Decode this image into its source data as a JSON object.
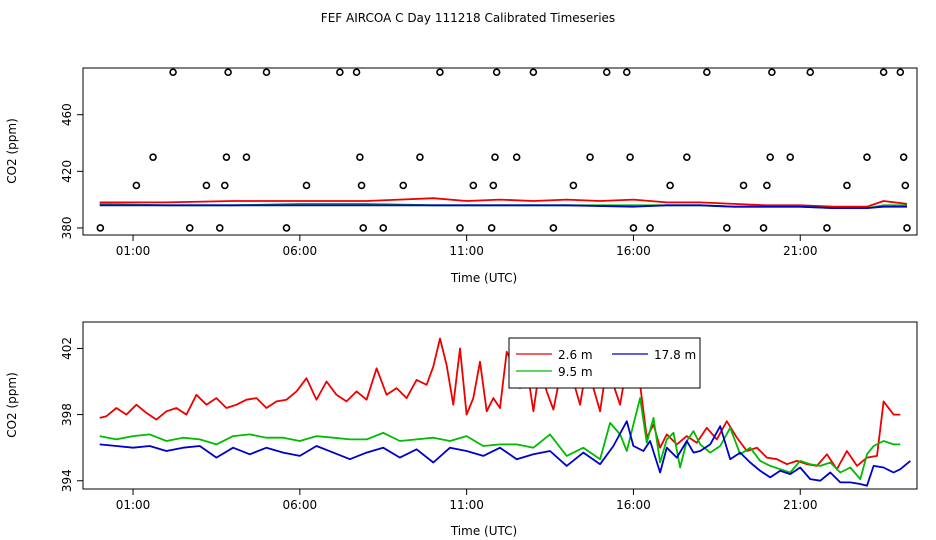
{
  "title": "FEF AIRCOA C  Day 111218  Calibrated Timeseries",
  "chart_data": [
    {
      "type": "line",
      "xlabel": "Time (UTC)",
      "ylabel": "CO2 (ppm)",
      "xlim": [
        -0.5,
        24.5
      ],
      "ylim": [
        375,
        493
      ],
      "x_ticks": [
        1,
        6,
        11,
        16,
        21
      ],
      "x_tick_labels": [
        "01:00",
        "06:00",
        "11:00",
        "16:00",
        "21:00"
      ],
      "y_ticks": [
        380,
        420,
        460
      ],
      "y_tick_labels": [
        "380",
        "420",
        "460"
      ],
      "grid": false,
      "legend": null,
      "markers": [
        {
          "x": 0.02,
          "y": 380
        },
        {
          "x": 1.1,
          "y": 410
        },
        {
          "x": 1.6,
          "y": 430
        },
        {
          "x": 2.2,
          "y": 490
        },
        {
          "x": 2.7,
          "y": 380
        },
        {
          "x": 3.2,
          "y": 410
        },
        {
          "x": 3.6,
          "y": 380
        },
        {
          "x": 3.75,
          "y": 410
        },
        {
          "x": 3.8,
          "y": 430
        },
        {
          "x": 3.85,
          "y": 490
        },
        {
          "x": 4.4,
          "y": 430
        },
        {
          "x": 5.0,
          "y": 490
        },
        {
          "x": 5.6,
          "y": 380
        },
        {
          "x": 6.2,
          "y": 410
        },
        {
          "x": 7.2,
          "y": 490
        },
        {
          "x": 7.7,
          "y": 490
        },
        {
          "x": 7.8,
          "y": 430
        },
        {
          "x": 7.85,
          "y": 410
        },
        {
          "x": 7.9,
          "y": 380
        },
        {
          "x": 8.5,
          "y": 380
        },
        {
          "x": 9.1,
          "y": 410
        },
        {
          "x": 9.6,
          "y": 430
        },
        {
          "x": 10.2,
          "y": 490
        },
        {
          "x": 10.8,
          "y": 380
        },
        {
          "x": 11.2,
          "y": 410
        },
        {
          "x": 11.8,
          "y": 410
        },
        {
          "x": 11.85,
          "y": 430
        },
        {
          "x": 11.9,
          "y": 490
        },
        {
          "x": 11.75,
          "y": 380
        },
        {
          "x": 12.5,
          "y": 430
        },
        {
          "x": 13.0,
          "y": 490
        },
        {
          "x": 13.6,
          "y": 380
        },
        {
          "x": 14.2,
          "y": 410
        },
        {
          "x": 14.7,
          "y": 430
        },
        {
          "x": 15.2,
          "y": 490
        },
        {
          "x": 15.8,
          "y": 490
        },
        {
          "x": 15.9,
          "y": 430
        },
        {
          "x": 16.0,
          "y": 380
        },
        {
          "x": 16.5,
          "y": 380
        },
        {
          "x": 17.1,
          "y": 410
        },
        {
          "x": 17.6,
          "y": 430
        },
        {
          "x": 18.2,
          "y": 490
        },
        {
          "x": 18.8,
          "y": 380
        },
        {
          "x": 19.3,
          "y": 410
        },
        {
          "x": 19.9,
          "y": 380
        },
        {
          "x": 20.0,
          "y": 410
        },
        {
          "x": 20.1,
          "y": 430
        },
        {
          "x": 20.15,
          "y": 490
        },
        {
          "x": 20.7,
          "y": 430
        },
        {
          "x": 21.3,
          "y": 490
        },
        {
          "x": 21.8,
          "y": 380
        },
        {
          "x": 22.4,
          "y": 410
        },
        {
          "x": 23.0,
          "y": 430
        },
        {
          "x": 23.5,
          "y": 490
        },
        {
          "x": 24.0,
          "y": 490
        },
        {
          "x": 24.1,
          "y": 430
        },
        {
          "x": 24.15,
          "y": 410
        },
        {
          "x": 24.2,
          "y": 380
        }
      ],
      "series": [
        {
          "color": "#ee0000",
          "x": [
            0,
            2,
            4,
            6,
            8,
            9,
            10,
            11,
            12,
            13,
            14,
            15,
            16,
            17,
            18,
            19,
            20,
            21,
            22,
            23,
            23.5,
            24.2
          ],
          "values": [
            398,
            398,
            399,
            399,
            399,
            400,
            401,
            399,
            400,
            399,
            400,
            399,
            400,
            398,
            398,
            397,
            396,
            396,
            395,
            395,
            399,
            397
          ]
        },
        {
          "color": "#00bb00",
          "x": [
            0,
            2,
            4,
            6,
            8,
            10,
            12,
            14,
            16,
            17,
            18,
            19,
            20,
            21,
            22,
            23,
            23.5,
            24.2
          ],
          "values": [
            397,
            396,
            396,
            397,
            397,
            396,
            396,
            396,
            396,
            396,
            396,
            395,
            395,
            395,
            394,
            394,
            396,
            396
          ]
        },
        {
          "color": "#0000cc",
          "x": [
            0,
            2,
            4,
            6,
            8,
            10,
            12,
            14,
            16,
            17,
            18,
            19,
            20,
            21,
            22,
            23,
            23.5,
            24.2
          ],
          "values": [
            396,
            396,
            396,
            396,
            396,
            396,
            396,
            396,
            395,
            396,
            396,
            395,
            395,
            395,
            394,
            394,
            395,
            395
          ]
        }
      ]
    },
    {
      "type": "line",
      "xlabel": "Time (UTC)",
      "ylabel": "CO2 (ppm)",
      "xlim": [
        -0.5,
        24.5
      ],
      "ylim": [
        393.5,
        403.6
      ],
      "x_ticks": [
        1,
        6,
        11,
        16,
        21
      ],
      "x_tick_labels": [
        "01:00",
        "06:00",
        "11:00",
        "16:00",
        "21:00"
      ],
      "y_ticks": [
        394,
        398,
        402
      ],
      "y_tick_labels": [
        "394",
        "398",
        "402"
      ],
      "grid": false,
      "legend": "top-center",
      "series": [
        {
          "name": "2.6 m",
          "color": "#ee0000",
          "x": [
            0,
            0.2,
            0.5,
            0.8,
            1.1,
            1.4,
            1.7,
            2.0,
            2.3,
            2.6,
            2.9,
            3.2,
            3.5,
            3.8,
            4.1,
            4.4,
            4.7,
            5.0,
            5.3,
            5.6,
            5.9,
            6.2,
            6.5,
            6.8,
            7.1,
            7.4,
            7.7,
            8.0,
            8.3,
            8.6,
            8.9,
            9.2,
            9.5,
            9.8,
            10.0,
            10.2,
            10.4,
            10.6,
            10.8,
            11.0,
            11.2,
            11.4,
            11.6,
            11.8,
            12.0,
            12.2,
            12.4,
            12.6,
            12.8,
            13.0,
            13.2,
            13.4,
            13.6,
            13.8,
            14.0,
            14.2,
            14.4,
            14.6,
            14.8,
            15.0,
            15.2,
            15.4,
            15.6,
            15.8,
            16.0,
            16.2,
            16.4,
            16.6,
            16.8,
            17.0,
            17.3,
            17.6,
            17.9,
            18.2,
            18.5,
            18.8,
            19.1,
            19.4,
            19.7,
            20.0,
            20.3,
            20.6,
            20.9,
            21.2,
            21.5,
            21.8,
            22.1,
            22.4,
            22.7,
            23.0,
            23.3,
            23.5,
            23.8,
            24.0
          ],
          "values": [
            397.8,
            397.9,
            398.4,
            398.0,
            398.6,
            398.1,
            397.7,
            398.2,
            398.4,
            398.0,
            399.2,
            398.6,
            399.0,
            398.4,
            398.6,
            398.9,
            399.0,
            398.4,
            398.8,
            398.9,
            399.4,
            400.2,
            398.9,
            400.0,
            399.2,
            398.8,
            399.4,
            398.9,
            400.8,
            399.2,
            399.6,
            399.0,
            400.1,
            399.8,
            400.9,
            402.6,
            401.0,
            398.6,
            402.0,
            398.0,
            399.0,
            401.2,
            398.2,
            399.0,
            398.4,
            401.8,
            401.0,
            399.6,
            400.9,
            398.2,
            401.0,
            399.4,
            398.3,
            400.3,
            402.5,
            400.0,
            398.6,
            401.0,
            399.6,
            398.2,
            401.0,
            399.8,
            398.6,
            401.0,
            402.2,
            399.8,
            396.6,
            397.4,
            396.0,
            396.8,
            396.2,
            396.7,
            396.3,
            397.2,
            396.5,
            397.6,
            396.6,
            395.8,
            396.0,
            395.4,
            395.3,
            395.0,
            395.2,
            395.0,
            394.9,
            395.6,
            394.7,
            395.8,
            394.9,
            395.4,
            395.5,
            398.8,
            398.0,
            398.0
          ]
        },
        {
          "name": "9.5 m",
          "color": "#00bb00",
          "x": [
            0,
            0.5,
            1.0,
            1.5,
            2.0,
            2.5,
            3.0,
            3.5,
            4.0,
            4.5,
            5.0,
            5.5,
            6.0,
            6.5,
            7.0,
            7.5,
            8.0,
            8.5,
            9.0,
            9.5,
            10.0,
            10.5,
            11.0,
            11.5,
            12.0,
            12.5,
            13.0,
            13.5,
            14.0,
            14.5,
            15.0,
            15.3,
            15.6,
            15.8,
            16.0,
            16.2,
            16.4,
            16.6,
            16.8,
            17.0,
            17.2,
            17.4,
            17.6,
            17.8,
            18.0,
            18.3,
            18.6,
            18.9,
            19.2,
            19.5,
            19.8,
            20.1,
            20.4,
            20.7,
            21.0,
            21.3,
            21.6,
            21.9,
            22.2,
            22.5,
            22.8,
            23.0,
            23.2,
            23.5,
            23.8,
            24.0
          ],
          "values": [
            396.7,
            396.5,
            396.7,
            396.8,
            396.4,
            396.6,
            396.5,
            396.2,
            396.7,
            396.8,
            396.6,
            396.6,
            396.4,
            396.7,
            396.6,
            396.5,
            396.5,
            396.9,
            396.4,
            396.5,
            396.6,
            396.4,
            396.7,
            396.1,
            396.2,
            396.2,
            396.0,
            396.8,
            395.5,
            396.0,
            395.3,
            397.5,
            396.8,
            395.8,
            397.4,
            399.0,
            396.3,
            397.8,
            395.1,
            396.5,
            396.9,
            394.8,
            396.4,
            397.0,
            396.2,
            395.7,
            396.1,
            397.2,
            395.6,
            396.0,
            395.2,
            394.9,
            394.7,
            394.5,
            395.2,
            395.0,
            394.9,
            395.1,
            394.5,
            394.8,
            394.1,
            395.6,
            396.1,
            396.4,
            396.2,
            396.2
          ]
        },
        {
          "name": "17.8 m",
          "color": "#0000cc",
          "x": [
            0,
            0.5,
            1.0,
            1.5,
            2.0,
            2.5,
            3.0,
            3.5,
            4.0,
            4.5,
            5.0,
            5.5,
            6.0,
            6.5,
            7.0,
            7.5,
            8.0,
            8.5,
            9.0,
            9.5,
            10.0,
            10.5,
            11.0,
            11.5,
            12.0,
            12.5,
            13.0,
            13.5,
            14.0,
            14.5,
            15.0,
            15.4,
            15.8,
            16.0,
            16.3,
            16.5,
            16.8,
            17.0,
            17.3,
            17.6,
            17.8,
            18.0,
            18.3,
            18.6,
            18.9,
            19.2,
            19.5,
            19.8,
            20.1,
            20.4,
            20.7,
            21.0,
            21.3,
            21.6,
            21.9,
            22.2,
            22.5,
            22.8,
            23.0,
            23.2,
            23.5,
            23.8,
            24.0,
            24.3
          ],
          "values": [
            396.2,
            396.1,
            396.0,
            396.1,
            395.8,
            396.0,
            396.1,
            395.4,
            396.0,
            395.6,
            396.0,
            395.7,
            395.5,
            396.1,
            395.7,
            395.3,
            395.7,
            396.0,
            395.4,
            395.9,
            395.1,
            396.0,
            395.8,
            395.5,
            396.0,
            395.3,
            395.6,
            395.8,
            394.9,
            395.7,
            395.0,
            396.1,
            397.6,
            396.1,
            395.8,
            396.4,
            394.5,
            396.0,
            395.4,
            396.4,
            395.7,
            395.8,
            396.2,
            397.3,
            395.3,
            395.7,
            395.1,
            394.6,
            394.2,
            394.6,
            394.4,
            394.8,
            394.1,
            394.0,
            394.5,
            393.9,
            393.9,
            393.8,
            393.7,
            394.9,
            394.8,
            394.5,
            394.7,
            395.2
          ]
        }
      ]
    }
  ]
}
